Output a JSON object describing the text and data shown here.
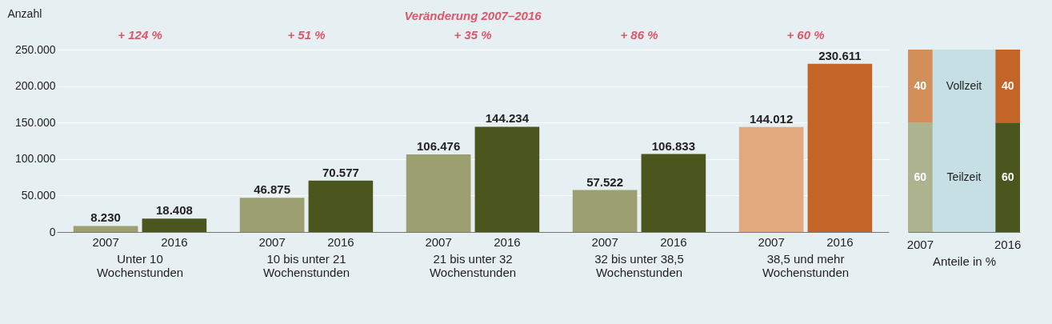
{
  "chart_data": [
    {
      "type": "bar",
      "ylabel": "Anzahl",
      "categories": [
        "Unter 10 Wochenstunden",
        "10 bis unter 21 Wochenstunden",
        "21 bis unter 32 Wochenstunden",
        "32 bis unter 38,5 Wochenstunden",
        "38,5 und mehr Wochenstunden"
      ],
      "series": [
        {
          "name": "2007",
          "colors": [
            "#9ca071",
            "#9ca071",
            "#9ca071",
            "#9ca071",
            "#e2a97e"
          ],
          "values": [
            8230,
            46875,
            106476,
            57522,
            144012
          ],
          "value_labels": [
            "8.230",
            "46.875",
            "106.476",
            "57.522",
            "144.012"
          ]
        },
        {
          "name": "2016",
          "colors": [
            "#4b561e",
            "#4b561e",
            "#4b561e",
            "#4b561e",
            "#c26526"
          ],
          "values": [
            18408,
            70577,
            144234,
            106833,
            230611
          ],
          "value_labels": [
            "18.408",
            "70.577",
            "144.234",
            "106.833",
            "230.611"
          ]
        }
      ],
      "ylim": [
        0,
        250000
      ],
      "yticks": [
        {
          "value": 0,
          "label": "0"
        },
        {
          "value": 50000,
          "label": "50.000"
        },
        {
          "value": 100000,
          "label": "100.000"
        },
        {
          "value": 150000,
          "label": "150.000"
        },
        {
          "value": 200000,
          "label": "200.000"
        },
        {
          "value": 250000,
          "label": "250.000"
        }
      ],
      "grid": "y",
      "subtitle": "Veränderung 2007–2016",
      "annotations": [
        "+ 124 %",
        "+ 51 %",
        "+ 35 %",
        "+ 86 %",
        "+ 60 %"
      ]
    },
    {
      "type": "bar",
      "stacked": true,
      "xlabel": "Anteile in %",
      "categories": [
        "2007",
        "2016"
      ],
      "series": [
        {
          "name": "Teilzeit",
          "colors": [
            "#adb38f",
            "#4b561e"
          ],
          "values": [
            60,
            60
          ]
        },
        {
          "name": "Vollzeit",
          "colors": [
            "#d38f5a",
            "#c26526"
          ],
          "values": [
            40,
            40
          ]
        }
      ],
      "ylim": [
        0,
        100
      ],
      "tick_labels": "x",
      "data_labels": true
    }
  ]
}
